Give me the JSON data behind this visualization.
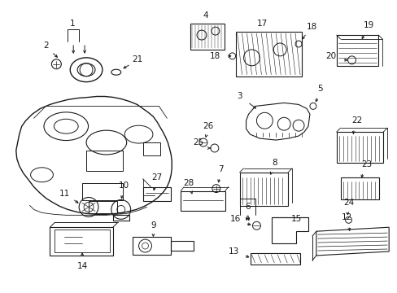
{
  "background_color": "#ffffff",
  "line_color": "#1a1a1a",
  "fig_width": 4.89,
  "fig_height": 3.6,
  "dpi": 100,
  "font_size": 7.5
}
